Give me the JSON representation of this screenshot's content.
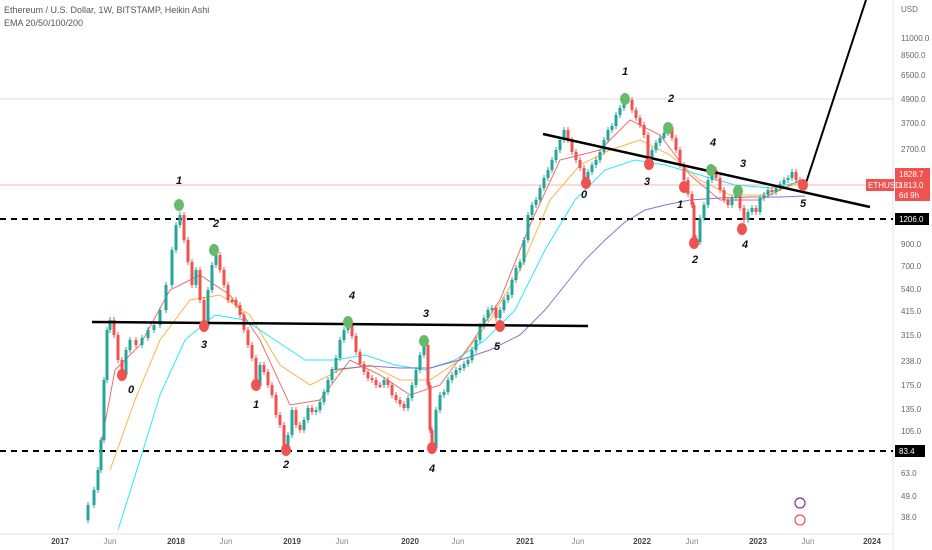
{
  "header": {
    "title": "Ethereum / U.S. Dollar, 1W, BITSTAMP, Heikin Ashi",
    "indicator": "EMA 20/50/100/200"
  },
  "chart_data": {
    "type": "candlestick",
    "currency": "USD",
    "scale": "log",
    "y_ticks": [
      "11000.0",
      "8500.0",
      "6500.0",
      "4900.0",
      "3700.0",
      "2700.0",
      "1206.0",
      "900.0",
      "700.0",
      "540.0",
      "415.0",
      "315.0",
      "238.0",
      "175.0",
      "135.0",
      "105.0",
      "83.4",
      "63.0",
      "49.0",
      "38.0"
    ],
    "x_ticks": [
      "2017",
      "Jun",
      "2018",
      "Jun",
      "2019",
      "Jun",
      "2020",
      "Jun",
      "2021",
      "Jun",
      "2022",
      "Jun",
      "2023",
      "Jun",
      "2024"
    ],
    "price_labels": {
      "high": "1828.7",
      "current": "1813.0",
      "countdown": "6d 9h",
      "symbol": "ETHUSD",
      "support": "1206.0",
      "low": "83.4"
    },
    "colors": {
      "up": "#26a69a",
      "down": "#ef5350",
      "ema20": "#ef5350",
      "ema50": "#ffa726",
      "ema100": "#00e5ff",
      "ema200": "#7e57c2",
      "pivot_high": "#66bb6a",
      "pivot_low": "#ef5350"
    },
    "wave_labels_cycle1": [
      "0",
      "1",
      "2",
      "3",
      "4",
      "1",
      "2",
      "3",
      "4",
      "5"
    ],
    "wave_labels_cycle2": [
      "0",
      "1",
      "2",
      "3",
      "4",
      "1",
      "2",
      "3",
      "4",
      "5"
    ]
  }
}
